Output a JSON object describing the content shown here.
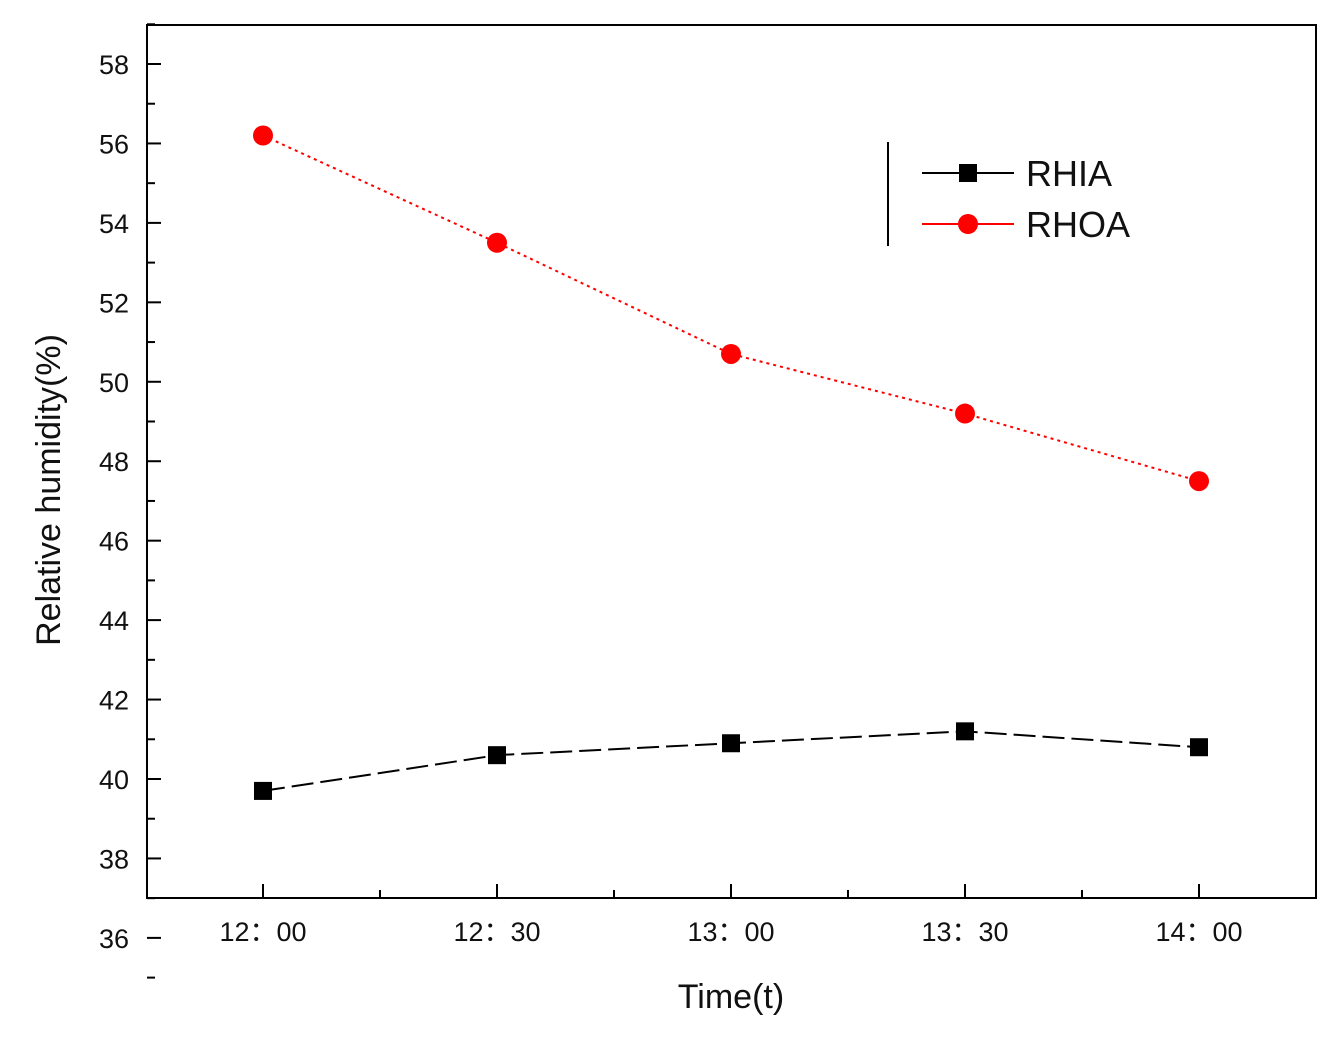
{
  "chart_data": {
    "type": "line",
    "title": "",
    "xlabel": "Time(t)",
    "ylabel": "Relative humidity(%)",
    "categories": [
      "12：00",
      "12：30",
      "13：00",
      "13：30",
      "14：00"
    ],
    "ylim": [
      37,
      59
    ],
    "yticks": [
      36,
      38,
      40,
      42,
      44,
      46,
      48,
      50,
      52,
      54,
      56,
      58
    ],
    "ytick_labels": [
      "36",
      "38",
      "40",
      "42",
      "44",
      "46",
      "48",
      "50",
      "52",
      "54",
      "56",
      "58"
    ],
    "legend_position": "top-right",
    "series": [
      {
        "name": "RHIA",
        "values": [
          39.7,
          40.6,
          40.9,
          41.2,
          40.8
        ],
        "color": "#000000",
        "marker": "square",
        "line_style": "dashed"
      },
      {
        "name": "RHOA",
        "values": [
          56.2,
          53.5,
          50.7,
          49.2,
          47.5
        ],
        "color": "#ff0000",
        "marker": "circle",
        "line_style": "dotted"
      }
    ]
  }
}
